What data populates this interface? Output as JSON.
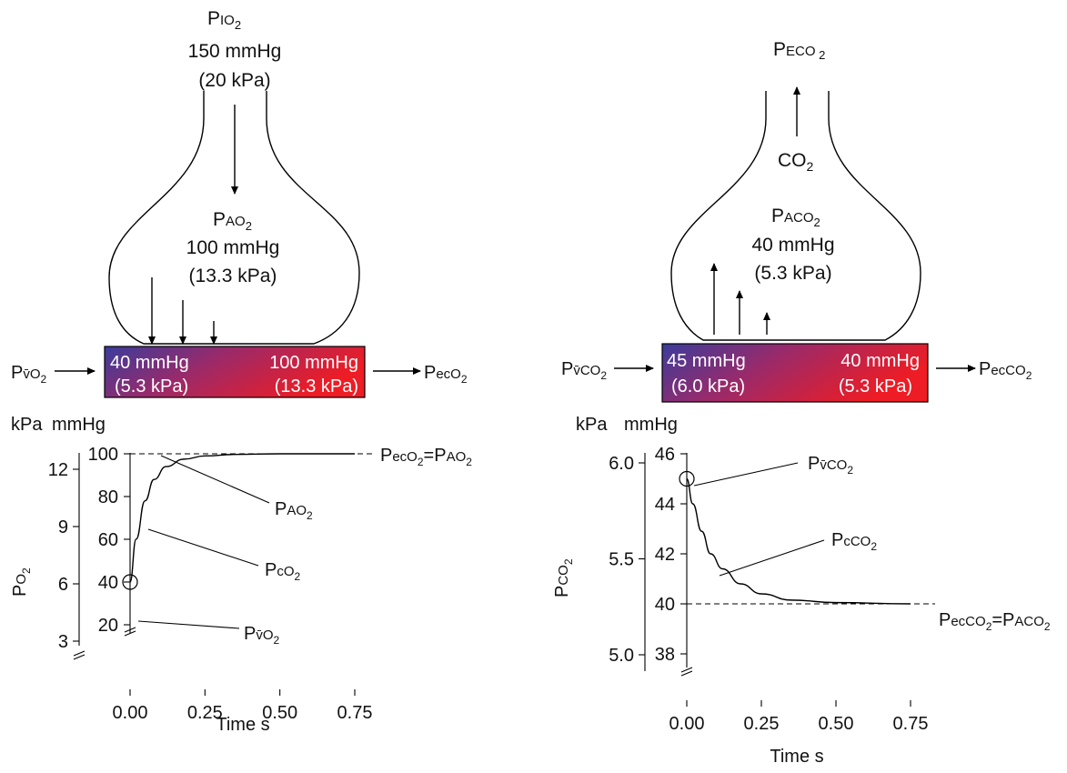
{
  "left_panel": {
    "inspired": {
      "p": "P",
      "sub": "IO",
      "subsub": "2",
      "value": "150 mmHg",
      "kpa": "(20 kPa)"
    },
    "alveolar": {
      "p": "P",
      "sub": "AO",
      "subsub": "2",
      "value": "100 mmHg",
      "kpa": "(13.3 kPa)"
    },
    "box": {
      "left_value": "40 mmHg",
      "left_kpa": "(5.3 kPa)",
      "right_value": "100 mmHg",
      "right_kpa": "(13.3 kPa)",
      "color_start": "#3a3c9c",
      "color_end": "#ee1c24"
    },
    "inflow": {
      "p": "P",
      "sub": "v̄O",
      "subsub": "2"
    },
    "outflow": {
      "p": "P",
      "sub": "ecO",
      "subsub": "2"
    }
  },
  "right_panel": {
    "expired": {
      "p": "P",
      "sub": "ECO",
      "subsub": " 2"
    },
    "co2_label": {
      "main": "CO",
      "sub": "2"
    },
    "alveolar": {
      "p": "P",
      "sub": "ACO",
      "subsub": "2",
      "value": "40 mmHg",
      "kpa": "(5.3 kPa)"
    },
    "box": {
      "left_value": "45 mmHg",
      "left_kpa": "(6.0 kPa)",
      "right_value": "40 mmHg",
      "right_kpa": "(5.3 kPa)",
      "color_start": "#3a3c9c",
      "color_end": "#ee1c24"
    },
    "inflow": {
      "p": "P",
      "sub": "v̄CO",
      "subsub": "2"
    },
    "outflow": {
      "p": "P",
      "sub": "ecCO",
      "subsub": "2"
    }
  },
  "chart_data": [
    {
      "type": "line",
      "units_header": {
        "kpa": "kPa",
        "mmhg": "mmHg"
      },
      "ylabel": {
        "main": "P",
        "sub": "O",
        "subsub": "2"
      },
      "xlabel": "Time s",
      "xlim": [
        0,
        0.75
      ],
      "x_ticks": [
        "0.00",
        "0.25",
        "0.50",
        "0.75"
      ],
      "x_tick_values": [
        0,
        0.25,
        0.5,
        0.75
      ],
      "ylim_mmhg": [
        20,
        100
      ],
      "mmhg_ticks": [
        "20",
        "40",
        "60",
        "80",
        "100"
      ],
      "mmhg_tick_values": [
        20,
        40,
        60,
        80,
        100
      ],
      "kpa_ticks": [
        "3",
        "6",
        "9",
        "12"
      ],
      "kpa_tick_values": [
        3,
        6,
        9,
        12
      ],
      "series": [
        {
          "x": [
            0,
            0.02,
            0.05,
            0.08,
            0.12,
            0.18,
            0.25,
            0.35,
            0.5,
            0.75
          ],
          "y": [
            40,
            60,
            78,
            88,
            94,
            97.5,
            99,
            99.7,
            100,
            100
          ]
        }
      ],
      "reference_line": {
        "y": 100,
        "label": {
          "p1": "P",
          "s1": "ecO",
          "ss1": "2",
          "eq": "=P",
          "s2": "AO",
          "ss2": "2"
        }
      },
      "start_marker": {
        "x": 0,
        "y": 40
      },
      "annotations": [
        {
          "p": "P",
          "sub": "AO",
          "subsub": "2"
        },
        {
          "p": "P",
          "sub": "cO",
          "subsub": "2"
        },
        {
          "p": "P",
          "sub": "v̄O",
          "subsub": "2"
        }
      ]
    },
    {
      "type": "line",
      "units_header": {
        "kpa": "kPa",
        "mmhg": "mmHg"
      },
      "ylabel": {
        "main": "P",
        "sub": "CO",
        "subsub": "2"
      },
      "xlabel": "Time s",
      "xlim": [
        0,
        0.75
      ],
      "x_ticks": [
        "0.00",
        "0.25",
        "0.50",
        "0.75"
      ],
      "x_tick_values": [
        0,
        0.25,
        0.5,
        0.75
      ],
      "ylim_mmhg": [
        38,
        46
      ],
      "mmhg_ticks": [
        "38",
        "40",
        "42",
        "44",
        "46"
      ],
      "mmhg_tick_values": [
        38,
        40,
        42,
        44,
        46
      ],
      "kpa_ticks": [
        "5.0",
        "5.5",
        "6.0"
      ],
      "kpa_tick_values": [
        5.0,
        5.5,
        6.0
      ],
      "series": [
        {
          "x": [
            0,
            0.02,
            0.05,
            0.08,
            0.12,
            0.18,
            0.25,
            0.35,
            0.5,
            0.75
          ],
          "y": [
            45,
            44,
            42.9,
            42.0,
            41.4,
            40.8,
            40.4,
            40.15,
            40.05,
            40
          ]
        }
      ],
      "reference_line": {
        "y": 40,
        "label": {
          "p1": "P",
          "s1": "ecCO",
          "ss1": "2",
          "eq": "=P",
          "s2": "ACO",
          "ss2": "2"
        }
      },
      "start_marker": {
        "x": 0,
        "y": 45
      },
      "annotations": [
        {
          "p": "P",
          "sub": "v̄CO",
          "subsub": "2"
        },
        {
          "p": "P",
          "sub": "cCO",
          "subsub": "2"
        }
      ]
    }
  ]
}
